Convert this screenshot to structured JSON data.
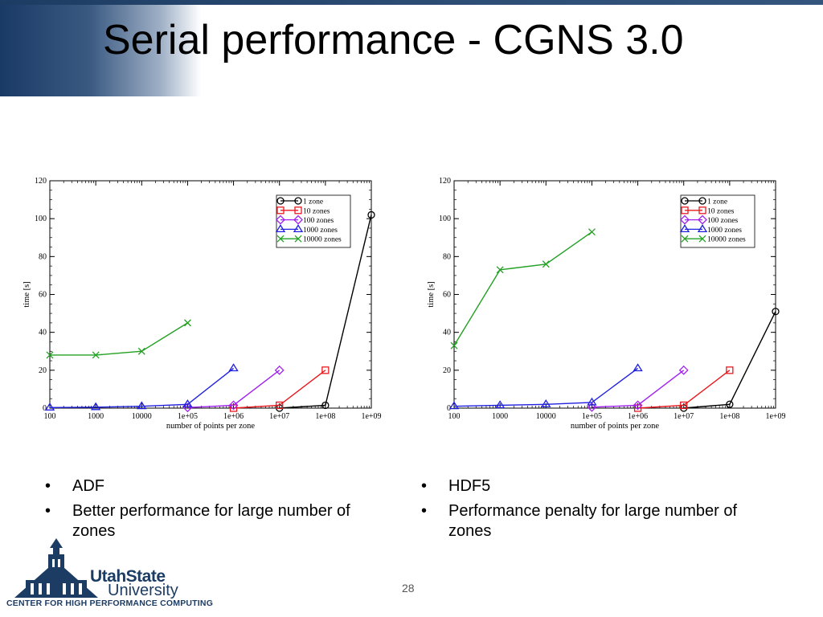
{
  "slide": {
    "title": "Serial performance - CGNS 3.0",
    "page_number": "28"
  },
  "bullets_left": [
    "ADF",
    "Better performance for large number of zones"
  ],
  "bullets_right": [
    "HDF5",
    "Performance penalty for large number of zones"
  ],
  "bullet_glyph": "•",
  "logo": {
    "name": "UtahState",
    "sub": "University",
    "center": "CENTER FOR HIGH PERFORMANCE COMPUTING"
  },
  "colors": {
    "1 zone": "#000000",
    "10 zones": "#e8191e",
    "100 zones": "#a020f0",
    "1000 zones": "#2020e0",
    "10000 zones": "#22a022"
  },
  "chart_data": [
    {
      "type": "line",
      "xscale": "log",
      "xlabel": "number of points per zone",
      "ylabel": "time [s]",
      "xlim": [
        100,
        1000000000.0
      ],
      "ylim": [
        0,
        120
      ],
      "xticks": [
        "100",
        "1000",
        "10000",
        "1e+05",
        "1e+06",
        "1e+07",
        "1e+08",
        "1e+09"
      ],
      "yticks": [
        "0",
        "20",
        "40",
        "60",
        "80",
        "100",
        "120"
      ],
      "legend_position": "top-right",
      "series": [
        {
          "name": "1 zone",
          "marker": "circle",
          "x": [
            10000000.0,
            100000000.0,
            1000000000.0
          ],
          "y": [
            0,
            1.5,
            102
          ]
        },
        {
          "name": "10 zones",
          "marker": "square",
          "x": [
            1000000.0,
            10000000.0,
            100000000.0
          ],
          "y": [
            0,
            1.5,
            20
          ]
        },
        {
          "name": "100 zones",
          "marker": "diamond",
          "x": [
            100000.0,
            1000000.0,
            10000000.0
          ],
          "y": [
            0.3,
            1.5,
            20
          ]
        },
        {
          "name": "1000 zones",
          "marker": "triangle",
          "x": [
            100,
            1000,
            10000,
            100000.0,
            1000000.0
          ],
          "y": [
            0.3,
            0.5,
            1,
            2,
            21
          ]
        },
        {
          "name": "10000 zones",
          "marker": "x",
          "x": [
            100,
            1000,
            10000,
            100000.0
          ],
          "y": [
            28,
            28,
            30,
            45
          ]
        }
      ]
    },
    {
      "type": "line",
      "xscale": "log",
      "xlabel": "number of points per zone",
      "ylabel": "time [s]",
      "xlim": [
        100,
        1000000000.0
      ],
      "ylim": [
        0,
        120
      ],
      "xticks": [
        "100",
        "1000",
        "10000",
        "1e+05",
        "1e+06",
        "1e+07",
        "1e+08",
        "1e+09"
      ],
      "yticks": [
        "0",
        "20",
        "40",
        "60",
        "80",
        "100",
        "120"
      ],
      "legend_position": "top-right",
      "series": [
        {
          "name": "1 zone",
          "marker": "circle",
          "x": [
            10000000.0,
            100000000.0,
            1000000000.0
          ],
          "y": [
            0,
            2,
            51
          ]
        },
        {
          "name": "10 zones",
          "marker": "square",
          "x": [
            1000000.0,
            10000000.0,
            100000000.0
          ],
          "y": [
            0,
            1.5,
            20
          ]
        },
        {
          "name": "100 zones",
          "marker": "diamond",
          "x": [
            100000.0,
            1000000.0,
            10000000.0
          ],
          "y": [
            0.5,
            1.5,
            20
          ]
        },
        {
          "name": "1000 zones",
          "marker": "triangle",
          "x": [
            100,
            1000,
            10000,
            100000.0,
            1000000.0
          ],
          "y": [
            1,
            1.5,
            2,
            3,
            21
          ]
        },
        {
          "name": "10000 zones",
          "marker": "x",
          "x": [
            100,
            1000,
            10000,
            100000.0
          ],
          "y": [
            33,
            73,
            76,
            93
          ]
        }
      ]
    }
  ]
}
